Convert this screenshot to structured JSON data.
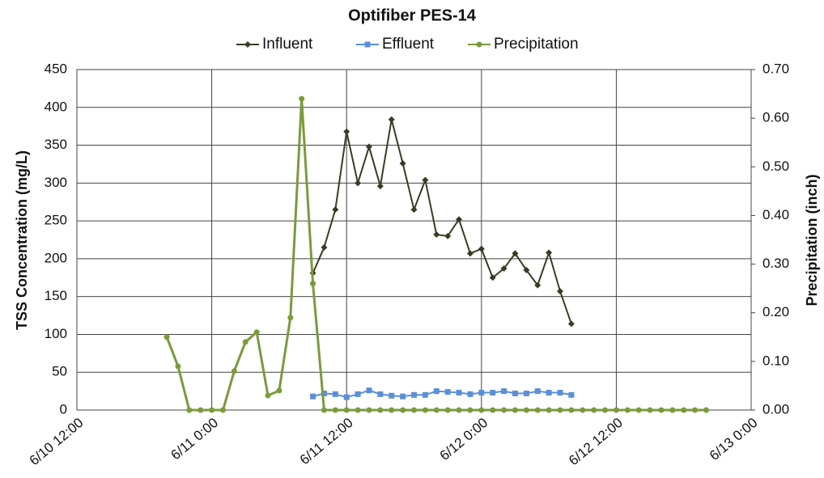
{
  "chart_data": {
    "type": "line",
    "title": "Optifiber PES-14",
    "y_label": "TSS Concentration (mg/L)",
    "y2_label": "Precipitation (inch)",
    "xlim": [
      "6/10 12:00",
      "6/13 0:00"
    ],
    "xticks": [
      "6/10 12:00",
      "6/11 0:00",
      "6/11 12:00",
      "6/12 0:00",
      "6/12 12:00",
      "6/13 0:00"
    ],
    "ylim": [
      0,
      450
    ],
    "yticks": [
      0,
      50,
      100,
      150,
      200,
      250,
      300,
      350,
      400,
      450
    ],
    "y2lim": [
      0,
      0.7
    ],
    "y2ticks": [
      {
        "value": 0,
        "label": "0.00"
      },
      {
        "value": 0.1,
        "label": "0.10"
      },
      {
        "value": 0.2,
        "label": "0.20"
      },
      {
        "value": 0.3,
        "label": "0.30"
      },
      {
        "value": 0.4,
        "label": "0.40"
      },
      {
        "value": 0.5,
        "label": "0.50"
      },
      {
        "value": 0.6,
        "label": "0.60"
      },
      {
        "value": 0.7,
        "label": "0.70"
      }
    ],
    "grid": true,
    "legend": "top",
    "series": [
      {
        "name": "Influent",
        "color": "#3b3b23",
        "marker": "diamond",
        "x": [
          "6/11 9:00",
          "6/11 10:00",
          "6/11 11:00",
          "6/11 12:00",
          "6/11 13:00",
          "6/11 14:00",
          "6/11 15:00",
          "6/11 16:00",
          "6/11 17:00",
          "6/11 18:00",
          "6/11 19:00",
          "6/11 20:00",
          "6/11 21:00",
          "6/11 22:00",
          "6/11 23:00",
          "6/12 0:00",
          "6/12 1:00",
          "6/12 2:00",
          "6/12 3:00",
          "6/12 4:00",
          "6/12 5:00",
          "6/12 6:00",
          "6/12 7:00",
          "6/12 8:00"
        ],
        "values": [
          181,
          215,
          265,
          368,
          300,
          348,
          296,
          384,
          326,
          265,
          304,
          232,
          230,
          252,
          207,
          213,
          175,
          187,
          207,
          185,
          165,
          208,
          157,
          114
        ]
      },
      {
        "name": "Effluent",
        "color": "#5b8fd6",
        "marker": "square",
        "x": [
          "6/11 9:00",
          "6/11 10:00",
          "6/11 11:00",
          "6/11 12:00",
          "6/11 13:00",
          "6/11 14:00",
          "6/11 15:00",
          "6/11 16:00",
          "6/11 17:00",
          "6/11 18:00",
          "6/11 19:00",
          "6/11 20:00",
          "6/11 21:00",
          "6/11 22:00",
          "6/11 23:00",
          "6/12 0:00",
          "6/12 1:00",
          "6/12 2:00",
          "6/12 3:00",
          "6/12 4:00",
          "6/12 5:00",
          "6/12 6:00",
          "6/12 7:00",
          "6/12 8:00"
        ],
        "values": [
          18,
          22,
          21,
          17,
          21,
          26,
          21,
          19,
          18,
          20,
          20,
          25,
          24,
          23,
          21,
          23,
          23,
          25,
          22,
          22,
          25,
          23,
          23,
          20
        ]
      },
      {
        "name": "Precipitation",
        "color": "#7b9a3c",
        "marker": "circle",
        "axis": "y2",
        "x": [
          "6/10 20:00",
          "6/10 21:00",
          "6/10 22:00",
          "6/10 23:00",
          "6/11 0:00",
          "6/11 1:00",
          "6/11 2:00",
          "6/11 3:00",
          "6/11 4:00",
          "6/11 5:00",
          "6/11 6:00",
          "6/11 7:00",
          "6/11 8:00",
          "6/11 9:00",
          "6/11 10:00",
          "6/11 11:00",
          "6/11 12:00",
          "6/11 13:00",
          "6/11 14:00",
          "6/11 15:00",
          "6/11 16:00",
          "6/11 17:00",
          "6/11 18:00",
          "6/11 19:00",
          "6/11 20:00",
          "6/11 21:00",
          "6/11 22:00",
          "6/11 23:00",
          "6/12 0:00",
          "6/12 1:00",
          "6/12 2:00",
          "6/12 3:00",
          "6/12 4:00",
          "6/12 5:00",
          "6/12 6:00",
          "6/12 7:00",
          "6/12 8:00",
          "6/12 9:00",
          "6/12 10:00",
          "6/12 11:00",
          "6/12 12:00",
          "6/12 13:00",
          "6/12 14:00",
          "6/12 15:00",
          "6/12 16:00",
          "6/12 17:00",
          "6/12 18:00",
          "6/12 19:00",
          "6/12 20:00"
        ],
        "values": [
          0.15,
          0.09,
          0,
          0,
          0,
          0,
          0.08,
          0.14,
          0.16,
          0.03,
          0.04,
          0.19,
          0.64,
          0.26,
          0,
          0,
          0,
          0,
          0,
          0,
          0,
          0,
          0,
          0,
          0,
          0,
          0,
          0,
          0,
          0,
          0,
          0,
          0,
          0,
          0,
          0,
          0,
          0,
          0,
          0,
          0,
          0,
          0,
          0,
          0,
          0,
          0,
          0,
          0
        ]
      }
    ]
  }
}
